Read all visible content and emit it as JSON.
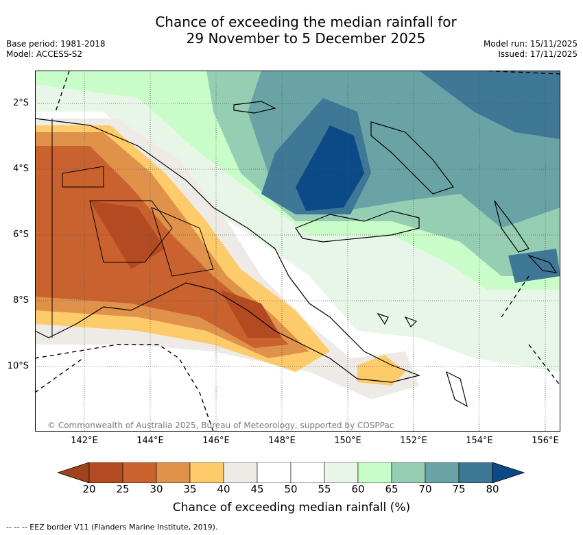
{
  "title": {
    "line1": "Chance of exceeding the median rainfall for",
    "line2": "29 November to 5 December 2025"
  },
  "info_left": {
    "base_period": "Base period: 1981-2018",
    "model": "Model: ACCESS-S2"
  },
  "info_right": {
    "model_run": "Model run: 15/11/2025",
    "issued": "Issued: 17/11/2025"
  },
  "map": {
    "lat_labels": [
      "2°S",
      "4°S",
      "6°S",
      "8°S",
      "10°S"
    ],
    "lon_labels": [
      "142°E",
      "144°E",
      "146°E",
      "148°E",
      "150°E",
      "152°E",
      "154°E",
      "156°E"
    ],
    "credit": "© Commonwealth of Australia 2025, Bureau of Meteorology, supported by COSPPac"
  },
  "colorbar": {
    "ticks": [
      "20",
      "25",
      "30",
      "35",
      "40",
      "45",
      "50",
      "55",
      "60",
      "65",
      "70",
      "75",
      "80"
    ],
    "colors": [
      "#a0421c",
      "#b34a22",
      "#c9622f",
      "#e0924a",
      "#fecb6b",
      "#eeebe6",
      "#ffffff",
      "#ffffff",
      "#e8f6e8",
      "#c8fcc8",
      "#96ceb4",
      "#6aa3a6",
      "#3f7797",
      "#0b4a86"
    ],
    "label": "Chance of exceeding median rainfall (%)"
  },
  "footer": "--  --  -- EEZ border V11 (Flanders Marine Institute, 2019)."
}
